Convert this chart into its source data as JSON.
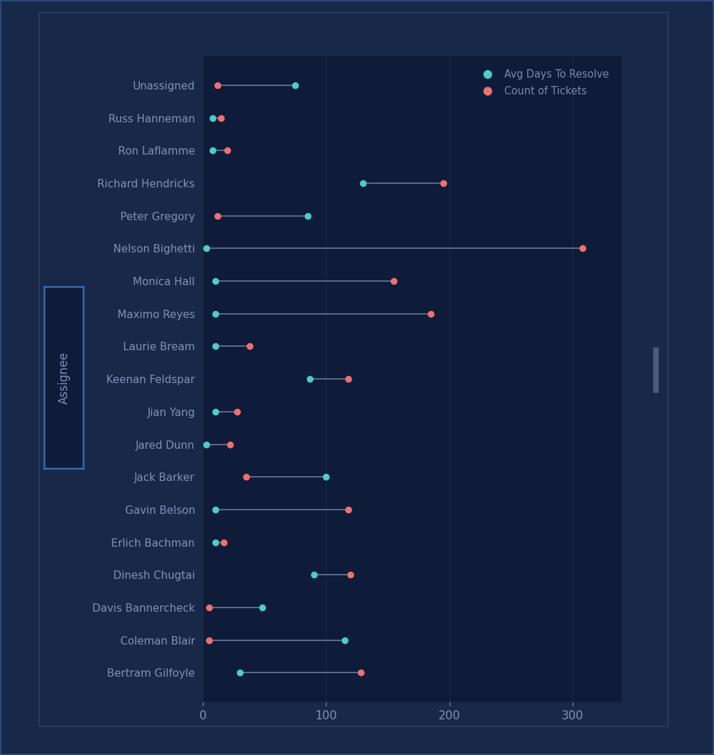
{
  "categories": [
    "Unassigned",
    "Russ Hanneman",
    "Ron Laflamme",
    "Richard Hendricks",
    "Peter Gregory",
    "Nelson Bighetti",
    "Monica Hall",
    "Maximo Reyes",
    "Laurie Bream",
    "Keenan Feldspar",
    "Jian Yang",
    "Jared Dunn",
    "Jack Barker",
    "Gavin Belson",
    "Erlich Bachman",
    "Dinesh Chugtai",
    "Davis Bannercheck",
    "Coleman Blair",
    "Bertram Gilfoyle"
  ],
  "avg_days": [
    75,
    8,
    8,
    130,
    85,
    3,
    10,
    10,
    10,
    87,
    10,
    3,
    100,
    10,
    10,
    90,
    48,
    115,
    30
  ],
  "count_tickets": [
    12,
    15,
    20,
    195,
    12,
    308,
    155,
    185,
    38,
    118,
    28,
    22,
    35,
    118,
    17,
    120,
    5,
    5,
    128
  ],
  "bg_color": "#0e1c3a",
  "plot_bg_color": "#0e1c3a",
  "line_color": "#6a7a99",
  "cyan_color": "#4ecdc4",
  "red_color": "#f07070",
  "text_color": "#8090b8",
  "legend_text_color": "#7a8aaa",
  "xlim": [
    0,
    340
  ],
  "xticks": [
    0,
    100,
    200,
    300
  ],
  "marker_size": 7,
  "line_width": 1.2,
  "fig_bg": "#182848",
  "outer_border_color": "#2a4a7a",
  "inner_border_color": "#2a3a5a",
  "assignee_box_border": "#3a6aaa",
  "label_fontsize": 11,
  "tick_fontsize": 12
}
